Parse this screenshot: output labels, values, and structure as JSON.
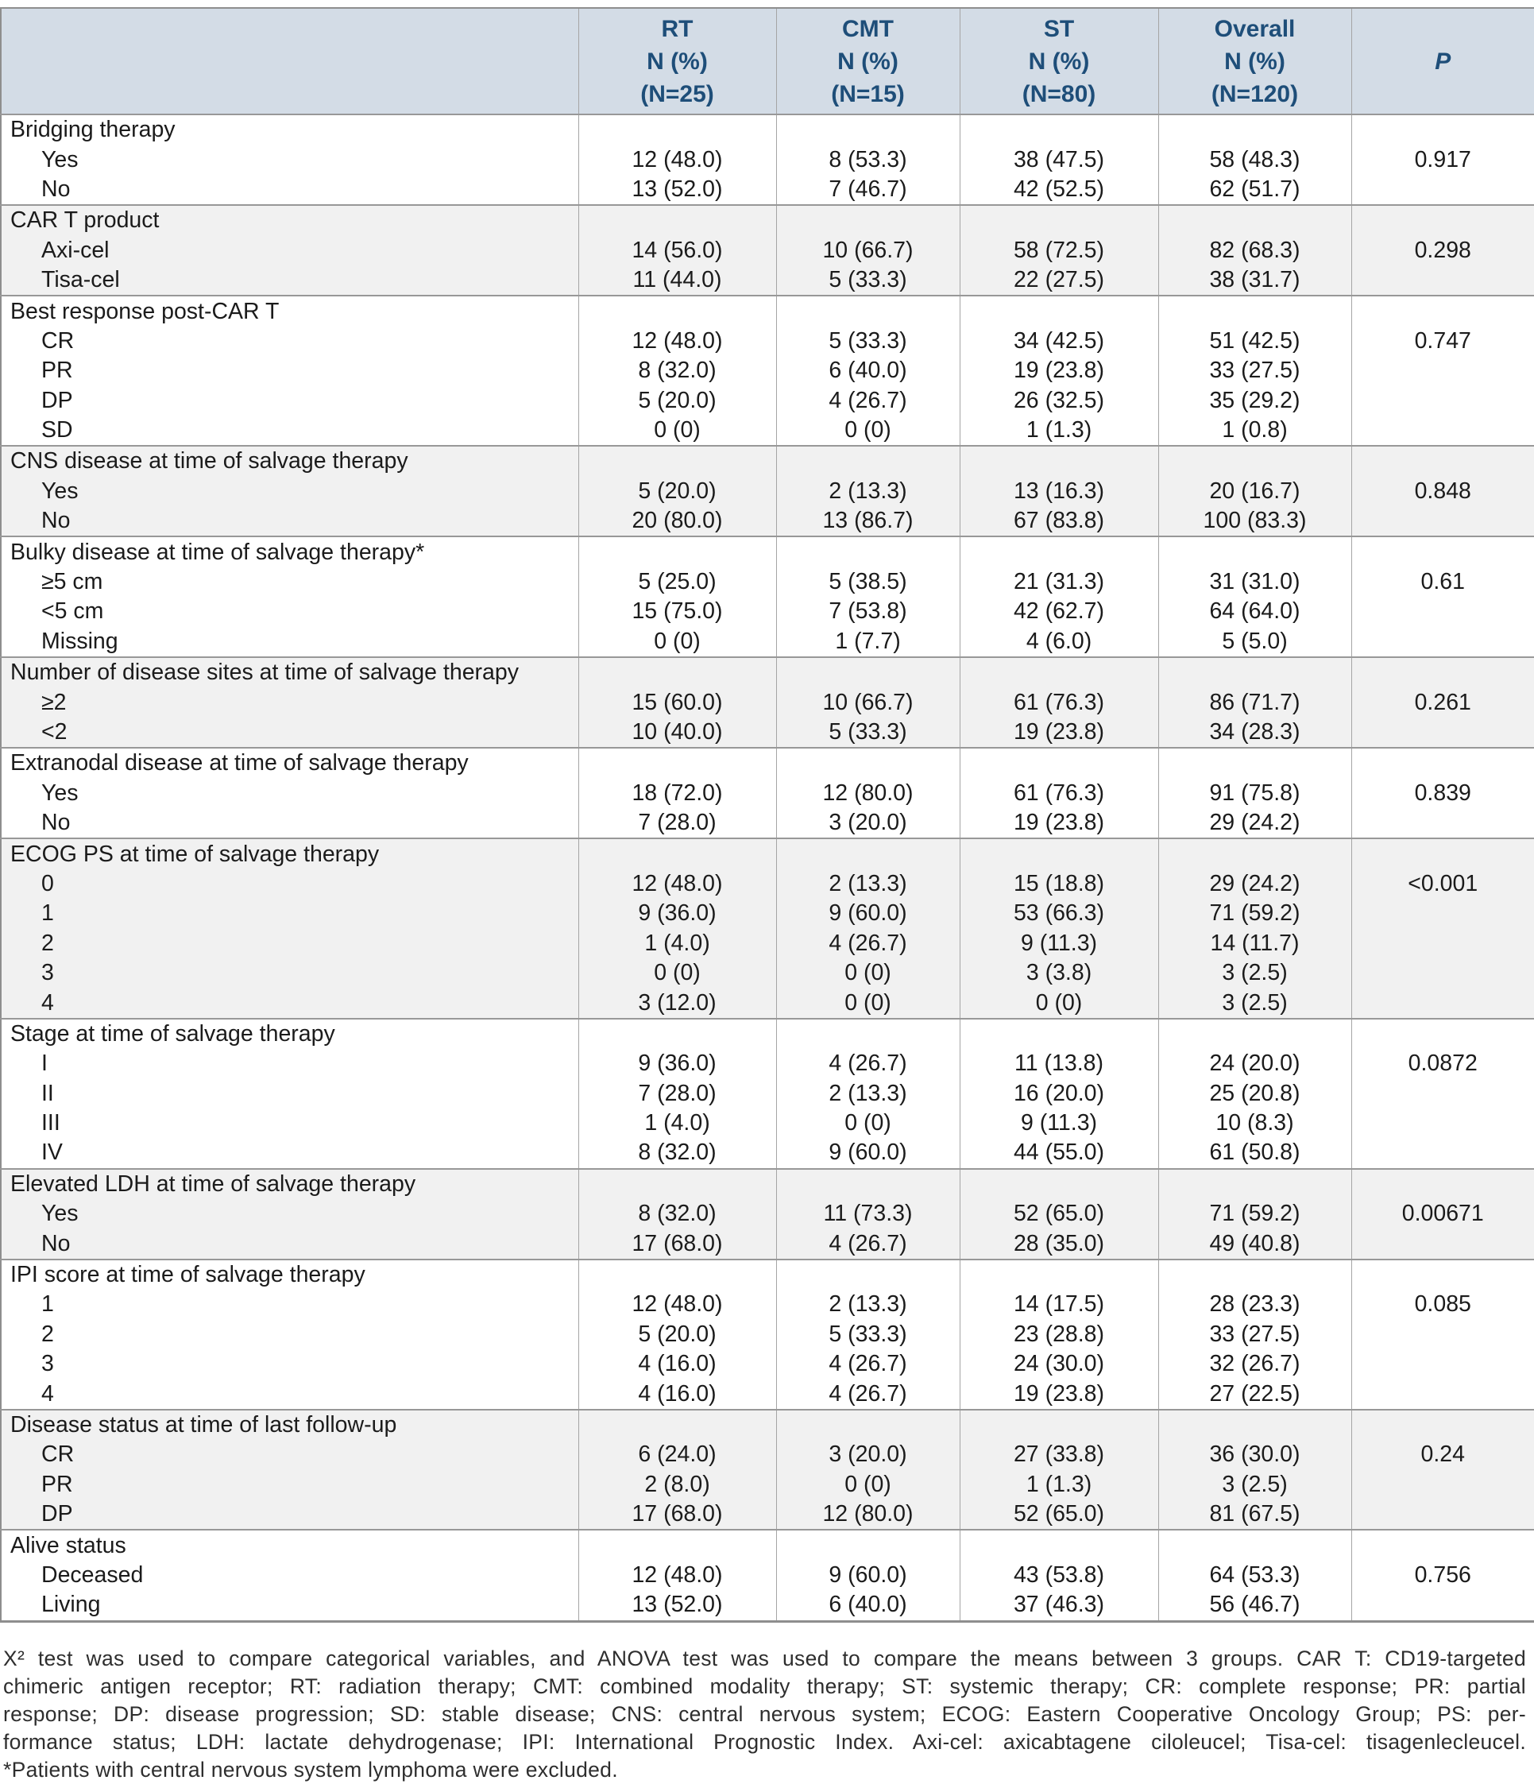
{
  "colors": {
    "header_bg": "#d3dce6",
    "header_text": "#1e4e79",
    "section_shade": "#f1f1f1",
    "border_gray": "#8e8e8e"
  },
  "header": {
    "columns": [
      {
        "lines": [
          "RT",
          "N (%)",
          "(N=25)"
        ]
      },
      {
        "lines": [
          "CMT",
          "N (%)",
          "(N=15)"
        ]
      },
      {
        "lines": [
          "ST",
          "N (%)",
          "(N=80)"
        ]
      },
      {
        "lines": [
          "Overall",
          "N (%)",
          "(N=120)"
        ]
      },
      {
        "lines": [
          "P"
        ]
      }
    ]
  },
  "sections": [
    {
      "label": "Bridging therapy",
      "p": "0.917",
      "rows": [
        {
          "label": "Yes",
          "values": [
            "12 (48.0)",
            "8 (53.3)",
            "38 (47.5)",
            "58 (48.3)"
          ]
        },
        {
          "label": "No",
          "values": [
            "13 (52.0)",
            "7 (46.7)",
            "42 (52.5)",
            "62 (51.7)"
          ]
        }
      ]
    },
    {
      "label": "CAR T product",
      "p": "0.298",
      "rows": [
        {
          "label": "Axi-cel",
          "values": [
            "14 (56.0)",
            "10 (66.7)",
            "58 (72.5)",
            "82 (68.3)"
          ]
        },
        {
          "label": "Tisa-cel",
          "values": [
            "11 (44.0)",
            "5 (33.3)",
            "22 (27.5)",
            "38 (31.7)"
          ]
        }
      ]
    },
    {
      "label": "Best response post-CAR T",
      "p": "0.747",
      "rows": [
        {
          "label": "CR",
          "values": [
            "12 (48.0)",
            "5 (33.3)",
            "34 (42.5)",
            "51 (42.5)"
          ]
        },
        {
          "label": "PR",
          "values": [
            "8 (32.0)",
            "6 (40.0)",
            "19 (23.8)",
            "33 (27.5)"
          ]
        },
        {
          "label": "DP",
          "values": [
            "5 (20.0)",
            "4 (26.7)",
            "26 (32.5)",
            "35 (29.2)"
          ]
        },
        {
          "label": "SD",
          "values": [
            "0 (0)",
            "0 (0)",
            "1 (1.3)",
            "1 (0.8)"
          ]
        }
      ]
    },
    {
      "label": "CNS disease at time of salvage therapy",
      "p": "0.848",
      "rows": [
        {
          "label": "Yes",
          "values": [
            "5 (20.0)",
            "2 (13.3)",
            "13 (16.3)",
            "20 (16.7)"
          ]
        },
        {
          "label": "No",
          "values": [
            "20 (80.0)",
            "13 (86.7)",
            "67 (83.8)",
            "100 (83.3)"
          ]
        }
      ]
    },
    {
      "label": "Bulky disease at time of salvage therapy*",
      "p": "0.61",
      "rows": [
        {
          "label": "≥5 cm",
          "values": [
            "5 (25.0)",
            "5 (38.5)",
            "21 (31.3)",
            "31 (31.0)"
          ]
        },
        {
          "label": "<5 cm",
          "values": [
            "15 (75.0)",
            "7 (53.8)",
            "42 (62.7)",
            "64 (64.0)"
          ]
        },
        {
          "label": "Missing",
          "values": [
            "0 (0)",
            "1 (7.7)",
            "4 (6.0)",
            "5 (5.0)"
          ]
        }
      ]
    },
    {
      "label": "Number of disease sites at time of salvage therapy",
      "p": "0.261",
      "rows": [
        {
          "label": "≥2",
          "values": [
            "15 (60.0)",
            "10 (66.7)",
            "61 (76.3)",
            "86 (71.7)"
          ]
        },
        {
          "label": "<2",
          "values": [
            "10 (40.0)",
            "5 (33.3)",
            "19 (23.8)",
            "34 (28.3)"
          ]
        }
      ]
    },
    {
      "label": "Extranodal disease at time of salvage therapy",
      "p": "0.839",
      "rows": [
        {
          "label": "Yes",
          "values": [
            "18 (72.0)",
            "12 (80.0)",
            "61 (76.3)",
            "91 (75.8)"
          ]
        },
        {
          "label": "No",
          "values": [
            "7 (28.0)",
            "3 (20.0)",
            "19 (23.8)",
            "29 (24.2)"
          ]
        }
      ]
    },
    {
      "label": "ECOG PS at time of salvage therapy",
      "p": "<0.001",
      "rows": [
        {
          "label": "0",
          "values": [
            "12 (48.0)",
            "2 (13.3)",
            "15 (18.8)",
            "29 (24.2)"
          ]
        },
        {
          "label": "1",
          "values": [
            "9 (36.0)",
            "9 (60.0)",
            "53 (66.3)",
            "71 (59.2)"
          ]
        },
        {
          "label": "2",
          "values": [
            "1 (4.0)",
            "4 (26.7)",
            "9 (11.3)",
            "14 (11.7)"
          ]
        },
        {
          "label": "3",
          "values": [
            "0 (0)",
            "0 (0)",
            "3 (3.8)",
            "3 (2.5)"
          ]
        },
        {
          "label": "4",
          "values": [
            "3 (12.0)",
            "0 (0)",
            "0 (0)",
            "3 (2.5)"
          ]
        }
      ]
    },
    {
      "label": "Stage at time of salvage therapy",
      "p": "0.0872",
      "rows": [
        {
          "label": "I",
          "values": [
            "9 (36.0)",
            "4 (26.7)",
            "11 (13.8)",
            "24 (20.0)"
          ]
        },
        {
          "label": "II",
          "values": [
            "7 (28.0)",
            "2 (13.3)",
            "16 (20.0)",
            "25 (20.8)"
          ]
        },
        {
          "label": "III",
          "values": [
            "1 (4.0)",
            "0 (0)",
            "9 (11.3)",
            "10 (8.3)"
          ]
        },
        {
          "label": "IV",
          "values": [
            "8 (32.0)",
            "9 (60.0)",
            "44 (55.0)",
            "61 (50.8)"
          ]
        }
      ]
    },
    {
      "label": "Elevated LDH at time of salvage therapy",
      "p": "0.00671",
      "rows": [
        {
          "label": "Yes",
          "values": [
            "8 (32.0)",
            "11 (73.3)",
            "52 (65.0)",
            "71 (59.2)"
          ]
        },
        {
          "label": "No",
          "values": [
            "17 (68.0)",
            "4 (26.7)",
            "28 (35.0)",
            "49 (40.8)"
          ]
        }
      ]
    },
    {
      "label": "IPI score at time of salvage therapy",
      "p": "0.085",
      "rows": [
        {
          "label": "1",
          "values": [
            "12 (48.0)",
            "2 (13.3)",
            "14 (17.5)",
            "28 (23.3)"
          ]
        },
        {
          "label": "2",
          "values": [
            "5 (20.0)",
            "5 (33.3)",
            "23 (28.8)",
            "33 (27.5)"
          ]
        },
        {
          "label": "3",
          "values": [
            "4 (16.0)",
            "4 (26.7)",
            "24 (30.0)",
            "32 (26.7)"
          ]
        },
        {
          "label": "4",
          "values": [
            "4 (16.0)",
            "4 (26.7)",
            "19 (23.8)",
            "27 (22.5)"
          ]
        }
      ]
    },
    {
      "label": "Disease status at time of last follow-up",
      "p": "0.24",
      "rows": [
        {
          "label": "CR",
          "values": [
            "6 (24.0)",
            "3 (20.0)",
            "27 (33.8)",
            "36 (30.0)"
          ]
        },
        {
          "label": "PR",
          "values": [
            "2 (8.0)",
            "0 (0)",
            "1 (1.3)",
            "3 (2.5)"
          ]
        },
        {
          "label": "DP",
          "values": [
            "17 (68.0)",
            "12 (80.0)",
            "52 (65.0)",
            "81 (67.5)"
          ]
        }
      ]
    },
    {
      "label": "Alive status",
      "p": "0.756",
      "rows": [
        {
          "label": "Deceased",
          "values": [
            "12 (48.0)",
            "9 (60.0)",
            "43 (53.8)",
            "64 (53.3)"
          ]
        },
        {
          "label": "Living",
          "values": [
            "13 (52.0)",
            "6 (40.0)",
            "37 (46.3)",
            "56 (46.7)"
          ]
        }
      ]
    }
  ],
  "footnote": {
    "lines": [
      "Χ² test was used to compare categorical variables, and ANOVA test was used to compare the means between 3 groups. CAR T: CD19-targeted",
      "chimeric antigen receptor; RT: radiation therapy; CMT: combined modality therapy; ST: systemic therapy; CR: complete response; PR: partial",
      "response; DP: disease progression; SD: stable disease; CNS: central nervous system; ECOG: Eastern Cooperative Oncology Group; PS: per-",
      "formance status; LDH: lactate dehydrogenase; IPI: International Prognostic Index. Axi-cel: axicabtagene ciloleucel; Tisa-cel: tisagenlecleucel.",
      "*Patients with central nervous system lymphoma were excluded."
    ]
  }
}
